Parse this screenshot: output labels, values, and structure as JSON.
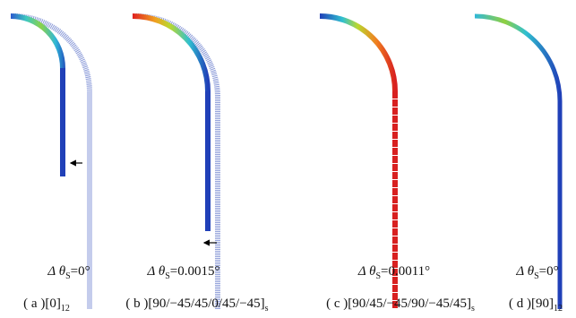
{
  "panels": [
    {
      "delta": {
        "symbol": "Δ θ",
        "sub": "S",
        "value": "=0°"
      },
      "caption": {
        "label": "( a )",
        "layup": "[0]",
        "sub": "12"
      }
    },
    {
      "delta": {
        "symbol": "Δ θ",
        "sub": "S",
        "value": "=0.0015°"
      },
      "caption": {
        "label": "( b )",
        "layup": "[90/−45/45/0/45/−45]",
        "sub": "s"
      }
    },
    {
      "delta": {
        "symbol": "Δ θ",
        "sub": "S",
        "value": "=0.0011°"
      },
      "caption": {
        "label": "( c )",
        "layup": "[90/45/−45/90/−45/45]",
        "sub": "s"
      }
    },
    {
      "delta": {
        "symbol": "Δ θ",
        "sub": "S",
        "value": "=0°"
      },
      "caption": {
        "label": "( d )",
        "layup": "[90]",
        "sub": "12"
      }
    }
  ]
}
